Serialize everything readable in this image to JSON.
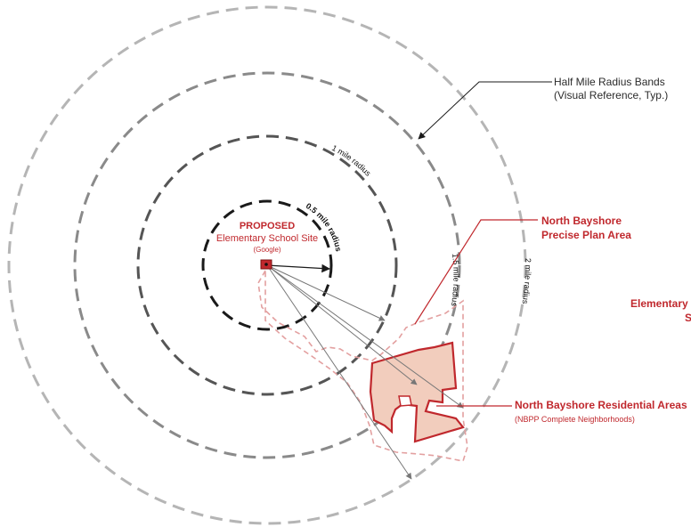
{
  "site": {
    "title": "PROPOSED",
    "subtitle": "Elementary School Site",
    "owner": "(Google)"
  },
  "radius_labels": {
    "half_mile": "0.5 mile radius",
    "one_mile": "1 mile radius",
    "one_half_mile": "1.5 mile radius",
    "two_mile": "2 mile radius"
  },
  "callouts": {
    "bands_line1": "Half Mile Radius Bands",
    "bands_line2": "(Visual Reference, Typ.)",
    "precise_line1": "North Bayshore",
    "precise_line2": "Precise Plan Area",
    "residential_line1": "North Bayshore Residential Areas",
    "residential_line2": "(NBPP Complete Neighborhoods)"
  },
  "cutoff_text": {
    "line1": "Elementary",
    "line2": "S"
  },
  "colors": {
    "accent_red": "#c0282d",
    "residential_fill": "#f2cdbd",
    "precise_boundary": "#e3a0a0",
    "ring_dark": "#1a1a1a",
    "ring_mid": "#555555",
    "ring_light": "#8a8a8a",
    "ring_lighter": "#b5b5b5"
  }
}
